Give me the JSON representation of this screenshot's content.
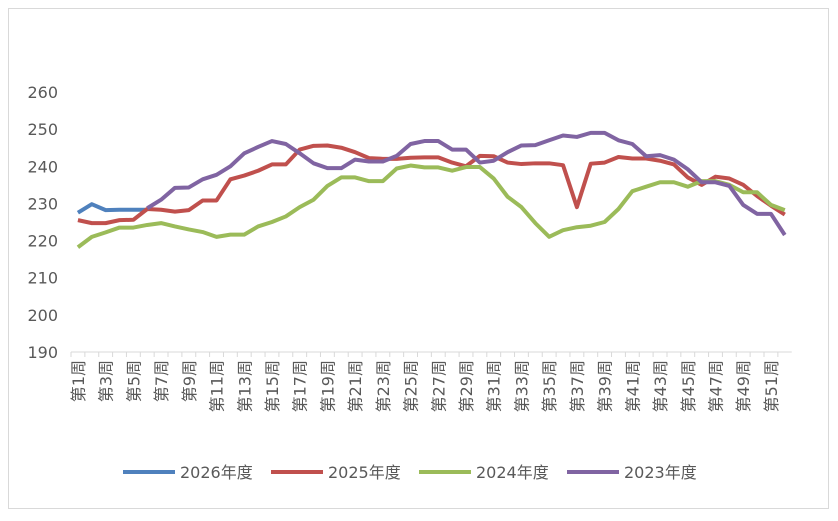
{
  "chart_data": {
    "type": "line",
    "categories": [
      "第1周",
      null,
      "第3周",
      null,
      "第5周",
      null,
      "第7周",
      null,
      "第9周",
      null,
      "第11周",
      null,
      "第13周",
      null,
      "第15周",
      null,
      "第17周",
      null,
      "第19周",
      null,
      "第21周",
      null,
      "第23周",
      null,
      "第25周",
      null,
      "第27周",
      null,
      "第29周",
      null,
      "第31周",
      null,
      "第33周",
      null,
      "第35周",
      null,
      "第37周",
      null,
      "第39周",
      null,
      "第41周",
      null,
      "第43周",
      null,
      "第45周",
      null,
      "第47周",
      null,
      "第49周",
      null,
      "第51周",
      null
    ],
    "series": [
      {
        "name": "2026年度",
        "color": "#4f81bd",
        "values": [
          227.5,
          229.8,
          228.2,
          228.3,
          228.3,
          228.3,
          null,
          null,
          null,
          null,
          null,
          null,
          null,
          null,
          null,
          null,
          null,
          null,
          null,
          null,
          null,
          null,
          null,
          null,
          null,
          null,
          null,
          null,
          null,
          null,
          null,
          null,
          null,
          null,
          null,
          null,
          null,
          null,
          null,
          null,
          null,
          null,
          null,
          null,
          null,
          null,
          null,
          null,
          null,
          null,
          null,
          null
        ]
      },
      {
        "name": "2025年度",
        "color": "#c0504d",
        "values": [
          225.5,
          224.7,
          224.7,
          225.5,
          225.6,
          228.5,
          228.3,
          227.8,
          228.2,
          230.8,
          230.8,
          236.5,
          237.5,
          238.8,
          240.5,
          240.5,
          244.5,
          245.5,
          245.6,
          245,
          243.8,
          242.2,
          242,
          242,
          242.3,
          242.4,
          242.4,
          241,
          240,
          242.8,
          242.7,
          241,
          240.6,
          240.8,
          240.8,
          240.3,
          229,
          240.7,
          241,
          242.5,
          242.1,
          242.1,
          241.5,
          240.5,
          237,
          235,
          237.2,
          236.7,
          235,
          232,
          229.4,
          227
        ]
      },
      {
        "name": "2024年度",
        "color": "#9bbb59",
        "values": [
          218.2,
          221,
          222.2,
          223.5,
          223.5,
          224.2,
          224.7,
          223.8,
          223,
          222.3,
          221,
          221.6,
          221.6,
          223.8,
          225,
          226.5,
          229,
          231,
          234.7,
          237,
          237,
          236,
          236,
          239.4,
          240.2,
          239.7,
          239.7,
          238.8,
          239.8,
          239.8,
          236.7,
          231.8,
          229,
          224.7,
          221,
          222.8,
          223.6,
          224,
          225,
          228.5,
          233.3,
          234.5,
          235.7,
          235.7,
          234.5,
          236,
          236,
          235,
          233,
          233,
          229.6,
          228.2
        ]
      },
      {
        "name": "2023年度",
        "color": "#8064a2",
        "values": [
          null,
          null,
          null,
          null,
          null,
          228.7,
          231,
          234.2,
          234.3,
          236.5,
          237.7,
          240,
          243.5,
          245.2,
          246.8,
          246,
          243.5,
          240.8,
          239.5,
          239.5,
          241.8,
          241.3,
          241.3,
          242.8,
          246,
          246.8,
          246.8,
          244.5,
          244.5,
          241,
          241.5,
          243.8,
          245.6,
          245.7,
          247,
          248.3,
          247.9,
          249,
          249,
          247,
          246,
          242.7,
          243,
          241.8,
          239.2,
          235.7,
          235.7,
          234.7,
          229.6,
          227.2,
          227.2,
          221.5
        ]
      }
    ],
    "ylim": [
      190,
      260
    ],
    "yticks": [
      190,
      200,
      210,
      220,
      230,
      240,
      250,
      260
    ],
    "grid": false,
    "legend": "bottom"
  }
}
